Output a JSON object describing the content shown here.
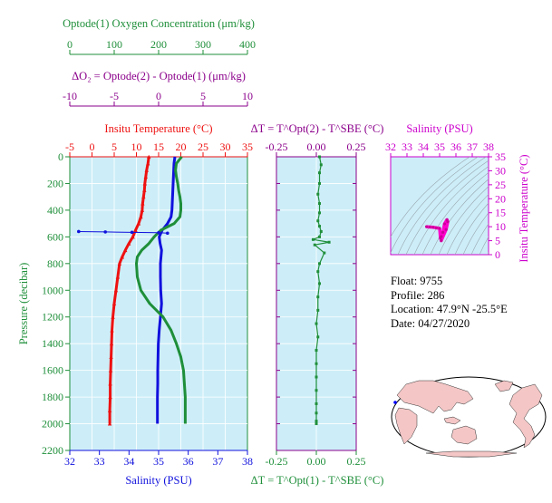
{
  "colors": {
    "oxygen": "#1f8f3a",
    "delta_o2": "#8b008b",
    "temperature": "#ee1111",
    "salinity": "#1111dd",
    "pressure": "#1f8f3a",
    "dt": "#8b008b",
    "dt_bottom": "#1f8f3a",
    "ts_title": "#cc00cc",
    "panel_bg": "#cdeef8",
    "land": "#f4c6c6"
  },
  "info": {
    "float": "Float:  9755",
    "profile": "Profile:  286",
    "location": "Location:  47.9°N  -25.5°E",
    "date": "Date:  04/27/2020"
  },
  "chart_data": [
    {
      "type": "line",
      "title": "Vertical profiles",
      "ylabel": "Pressure (decibar)",
      "ylim": [
        2200,
        0
      ],
      "yticks": [
        "0",
        "200",
        "400",
        "600",
        "800",
        "1000",
        "1200",
        "1400",
        "1600",
        "1800",
        "2000",
        "2200"
      ],
      "axes": {
        "oxygen": {
          "label": "Optode(1) Oxygen Concentration (μm/kg)",
          "range": [
            0,
            400
          ],
          "ticks": [
            "0",
            "100",
            "200",
            "300",
            "400"
          ]
        },
        "delta_o2": {
          "label": "ΔO₂ = Optode(2) - Optode(1)   (μm/kg)",
          "range": [
            -10,
            10
          ],
          "ticks": [
            "-10",
            "-5",
            "0",
            "5",
            "10"
          ]
        },
        "temperature": {
          "label": "Insitu Temperature (°C)",
          "range": [
            -5,
            35
          ],
          "ticks": [
            "-5",
            "0",
            "5",
            "10",
            "15",
            "20",
            "25",
            "30",
            "35"
          ]
        },
        "salinity": {
          "label": "Salinity (PSU)",
          "range": [
            32,
            38
          ],
          "ticks": [
            "32",
            "33",
            "34",
            "35",
            "36",
            "37",
            "38"
          ]
        }
      },
      "series": [
        {
          "name": "temperature",
          "axis": "temperature",
          "x": [
            12.8,
            12.6,
            12.3,
            12.1,
            11.9,
            11.8,
            11.6,
            11.4,
            11.3,
            11.0,
            10.5,
            9.8,
            9.2,
            8.3,
            7.5,
            6.8,
            6.2,
            5.8,
            5.4,
            5.0,
            4.7,
            4.5,
            4.4,
            4.3,
            4.2,
            4.1,
            4.1,
            4.0,
            4.0
          ],
          "y": [
            0,
            50,
            100,
            150,
            200,
            250,
            300,
            350,
            400,
            450,
            500,
            550,
            600,
            650,
            700,
            750,
            800,
            900,
            1000,
            1100,
            1200,
            1300,
            1400,
            1500,
            1600,
            1700,
            1800,
            1900,
            2000
          ]
        },
        {
          "name": "salinity",
          "axis": "salinity",
          "x": [
            35.55,
            35.52,
            35.51,
            35.5,
            35.49,
            35.48,
            35.47,
            35.46,
            35.45,
            35.42,
            35.3,
            35.12,
            35.02,
            35.05,
            35.1,
            35.08,
            35.06,
            35.06,
            35.07,
            35.1,
            35.06,
            35.02,
            34.99,
            34.98,
            34.97,
            34.97,
            34.96,
            34.96
          ],
          "y": [
            0,
            50,
            100,
            150,
            200,
            250,
            300,
            350,
            400,
            450,
            500,
            550,
            600,
            650,
            700,
            750,
            800,
            900,
            1000,
            1100,
            1200,
            1300,
            1400,
            1500,
            1600,
            1700,
            1800,
            2000
          ]
        },
        {
          "name": "oxygen",
          "axis": "oxygen",
          "x": [
            252,
            240,
            238,
            240,
            243,
            245,
            248,
            250,
            250,
            248,
            235,
            205,
            190,
            178,
            162,
            152,
            150,
            152,
            160,
            180,
            210,
            228,
            240,
            250,
            256,
            258,
            260,
            260,
            260
          ],
          "y": [
            0,
            50,
            100,
            150,
            200,
            250,
            300,
            350,
            400,
            450,
            500,
            550,
            600,
            650,
            700,
            750,
            800,
            900,
            1000,
            1100,
            1200,
            1300,
            1400,
            1500,
            1600,
            1700,
            1800,
            1900,
            2000
          ]
        },
        {
          "name": "delta_o2_spike",
          "axis": "delta_o2",
          "x": [
            -9.0,
            -6.0,
            -3.0,
            0.0,
            1.0
          ],
          "y": [
            560,
            563,
            566,
            569,
            572
          ]
        }
      ]
    },
    {
      "type": "scatter",
      "title": "ΔT = T^Opt(2) - T^SBE (°C)",
      "xlabel_bottom": "ΔT = T^Opt(1) - T^SBE (°C)",
      "xlim": [
        -0.25,
        0.25
      ],
      "xticks": [
        "-0.25",
        "0.00",
        "0.25"
      ],
      "ylim": [
        2200,
        0
      ],
      "x": [
        0.02,
        0.03,
        0.02,
        0.02,
        0.01,
        0.02,
        0.02,
        0.01,
        0.02,
        0.03,
        0.02,
        -0.02,
        0.08,
        -0.01,
        0.05,
        0.02,
        0.01,
        0.02,
        0.01,
        0.01,
        0.0,
        0.01,
        0.0,
        0.0,
        0.0,
        0.0,
        0.0,
        0.0,
        0.0,
        0.0
      ],
      "y": [
        0,
        60,
        120,
        200,
        280,
        350,
        420,
        480,
        520,
        560,
        600,
        620,
        640,
        660,
        720,
        800,
        860,
        950,
        1050,
        1150,
        1250,
        1350,
        1450,
        1550,
        1650,
        1750,
        1850,
        1920,
        1980,
        2000
      ]
    },
    {
      "type": "scatter",
      "title": "Salinity (PSU)",
      "ylabel": "Insitu Temperature (°C)",
      "xlim": [
        32,
        38
      ],
      "ylim": [
        0,
        35
      ],
      "xticks": [
        "32",
        "33",
        "34",
        "35",
        "36",
        "37",
        "38"
      ],
      "yticks": [
        "0",
        "5",
        "10",
        "15",
        "20",
        "25",
        "30",
        "35"
      ],
      "x": [
        34.2,
        34.4,
        34.6,
        34.8,
        35.0,
        35.05,
        35.1,
        35.4,
        35.5,
        35.45,
        35.3,
        35.2,
        35.1
      ],
      "y": [
        10.0,
        9.9,
        9.8,
        9.6,
        9.4,
        6.0,
        5.0,
        9.0,
        11.8,
        12.5,
        11.0,
        8.0,
        6.5
      ]
    }
  ]
}
